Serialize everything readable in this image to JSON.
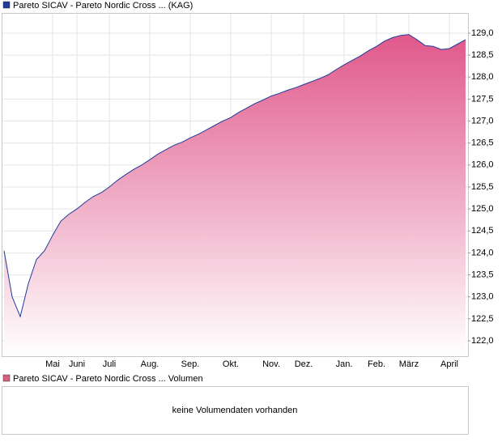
{
  "chart_data": {
    "type": "area",
    "grid": true,
    "ylim": [
      121.65,
      129.46
    ],
    "yticks": [
      {
        "value": 122,
        "label": "122,0"
      },
      {
        "value": 122.5,
        "label": "122,5"
      },
      {
        "value": 123,
        "label": "123,0"
      },
      {
        "value": 123.5,
        "label": "123,5"
      },
      {
        "value": 124,
        "label": "124,0"
      },
      {
        "value": 124.5,
        "label": "124,5"
      },
      {
        "value": 125,
        "label": "125,0"
      },
      {
        "value": 125.5,
        "label": "125,5"
      },
      {
        "value": 126,
        "label": "126,0"
      },
      {
        "value": 126.5,
        "label": "126,5"
      },
      {
        "value": 127,
        "label": "127,0"
      },
      {
        "value": 127.5,
        "label": "127,5"
      },
      {
        "value": 128,
        "label": "128,0"
      },
      {
        "value": 128.5,
        "label": "128,5"
      },
      {
        "value": 129,
        "label": "129,0"
      }
    ],
    "categories": [
      null,
      null,
      null,
      null,
      null,
      null,
      "Mai",
      null,
      null,
      "Juni",
      null,
      null,
      null,
      "Juli",
      null,
      null,
      null,
      null,
      "Aug.",
      null,
      null,
      null,
      null,
      "Sep.",
      null,
      null,
      null,
      null,
      "Okt.",
      null,
      null,
      null,
      null,
      "Nov.",
      null,
      null,
      null,
      "Dez.",
      null,
      null,
      null,
      null,
      "Jan.",
      null,
      null,
      null,
      "Feb.",
      null,
      null,
      null,
      "März",
      null,
      null,
      null,
      null,
      "April",
      null,
      null
    ],
    "series": [
      {
        "name": "Pareto SICAV - Pareto Nordic Cross ... (KAG)",
        "color": "#1f3c9a",
        "fill_top": "#e0588a",
        "values": [
          124.05,
          123.0,
          122.55,
          123.3,
          123.85,
          124.05,
          124.4,
          124.72,
          124.88,
          125.0,
          125.15,
          125.28,
          125.37,
          125.5,
          125.65,
          125.78,
          125.9,
          126.0,
          126.12,
          126.25,
          126.35,
          126.45,
          126.52,
          126.62,
          126.7,
          126.8,
          126.9,
          127.0,
          127.08,
          127.2,
          127.3,
          127.4,
          127.48,
          127.57,
          127.63,
          127.7,
          127.76,
          127.83,
          127.9,
          127.97,
          128.05,
          128.17,
          128.28,
          128.38,
          128.48,
          128.6,
          128.7,
          128.82,
          128.9,
          128.95,
          128.97,
          128.85,
          128.72,
          128.7,
          128.63,
          128.65,
          128.75,
          128.85
        ]
      }
    ]
  },
  "volume_panel": {
    "legend": "Pareto SICAV - Pareto Nordic Cross ... Volumen",
    "color": "#d9607e",
    "message": "keine Volumendaten vorhanden"
  }
}
